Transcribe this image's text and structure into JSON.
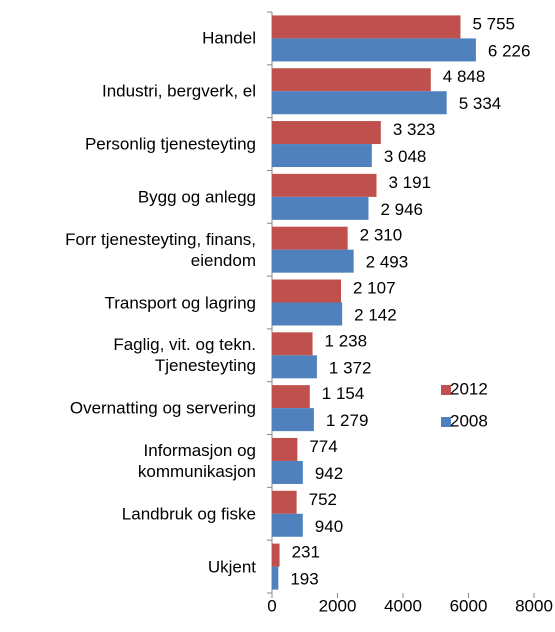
{
  "chart_data": {
    "type": "hbar",
    "categories": [
      "Handel",
      "Industri, bergverk, el",
      "Personlig tjenesteyting",
      "Bygg og anlegg",
      "Forr tjenesteyting, finans,\neiendom",
      "Transport og lagring",
      "Faglig, vit. og tekn.\nTjenesteyting",
      "Overnatting og servering",
      "Informasjon og\nkommunikasjon",
      "Landbruk og fiske",
      "Ukjent"
    ],
    "series": [
      {
        "name": "2012",
        "color": "#c0504d",
        "values": [
          5755,
          4848,
          3323,
          3191,
          2310,
          2107,
          1238,
          1154,
          774,
          752,
          231
        ],
        "value_labels": [
          "5 755",
          "4 848",
          "3 323",
          "3 191",
          "2 310",
          "2 107",
          "1 238",
          "1 154",
          "774",
          "752",
          "231"
        ]
      },
      {
        "name": "2008",
        "color": "#4f81bd",
        "values": [
          6226,
          5334,
          3048,
          2946,
          2493,
          2142,
          1372,
          1279,
          942,
          940,
          193
        ],
        "value_labels": [
          "6 226",
          "5 334",
          "3 048",
          "2 946",
          "2 493",
          "2 142",
          "1 372",
          "1 279",
          "942",
          "940",
          "193"
        ]
      }
    ],
    "xlim": [
      0,
      8000
    ],
    "xticks": [
      0,
      2000,
      4000,
      6000,
      8000
    ],
    "grid": false,
    "legend": "right"
  }
}
